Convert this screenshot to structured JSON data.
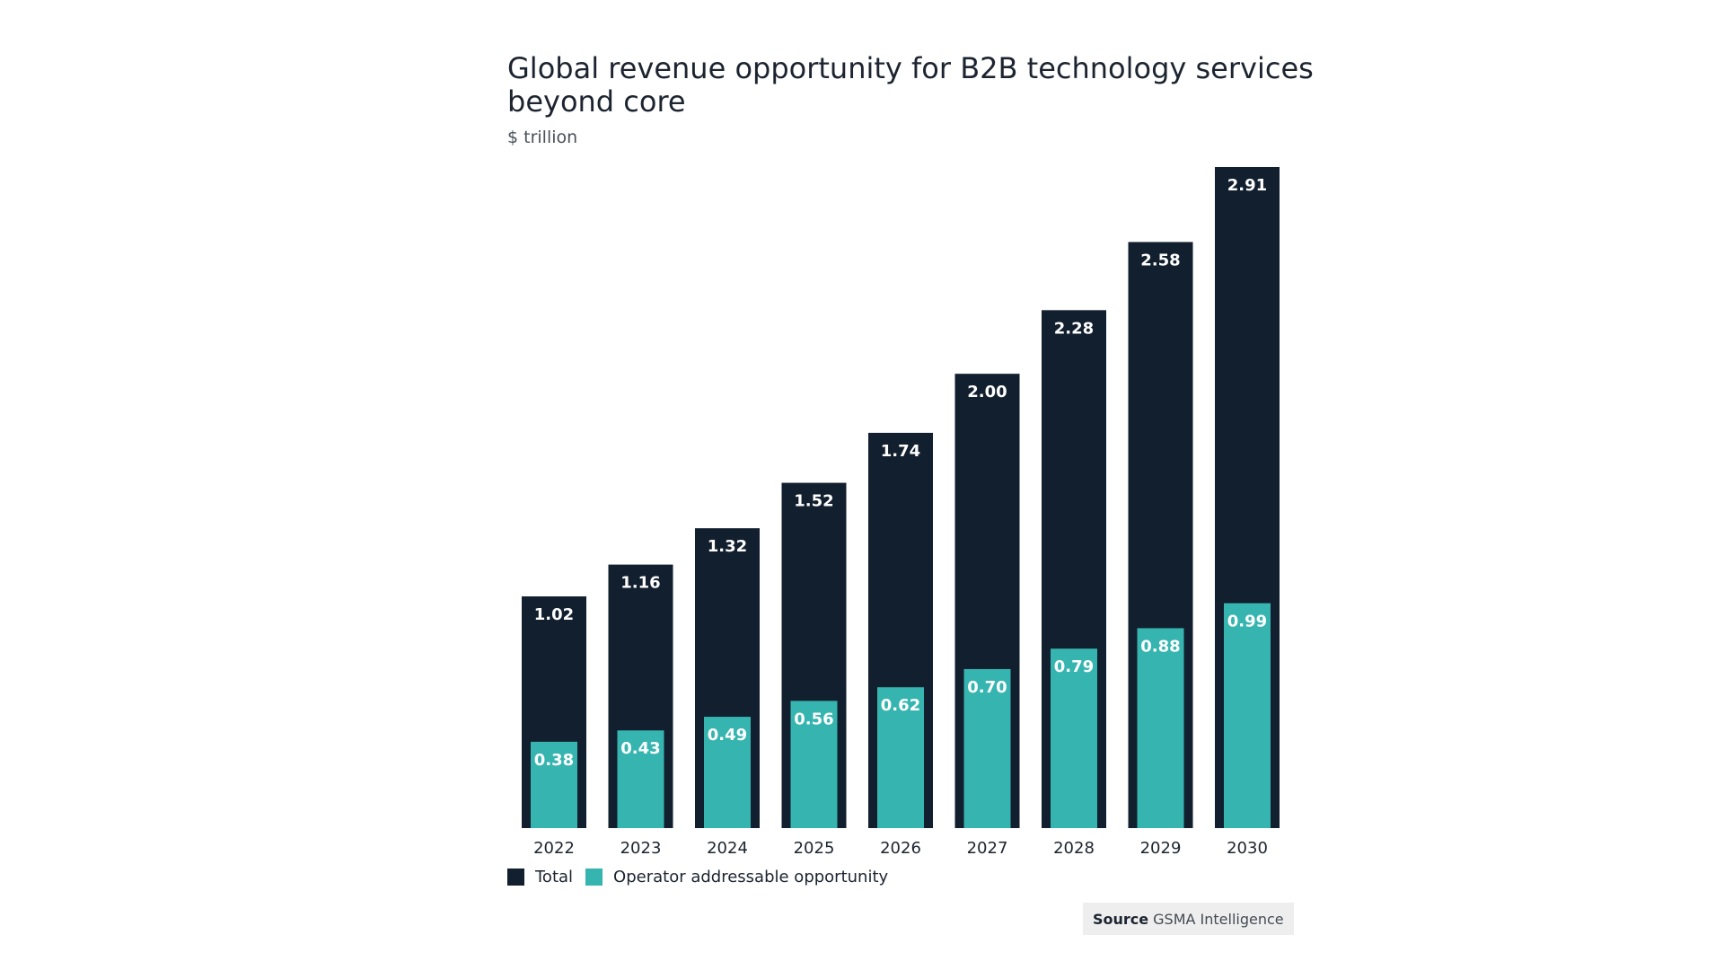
{
  "chart_data": {
    "type": "bar",
    "title": "Global revenue opportunity for B2B technology services beyond core",
    "subtitle": "$ trillion",
    "categories": [
      "2022",
      "2023",
      "2024",
      "2025",
      "2026",
      "2027",
      "2028",
      "2029",
      "2030"
    ],
    "series": [
      {
        "name": "Total",
        "values": [
          1.02,
          1.16,
          1.32,
          1.52,
          1.74,
          2.0,
          2.28,
          2.58,
          2.91
        ],
        "labels": [
          "1.02",
          "1.16",
          "1.32",
          "1.52",
          "1.74",
          "2.00",
          "2.28",
          "2.58",
          "2.91"
        ],
        "color": "#121f2e"
      },
      {
        "name": "Operator addressable opportunity",
        "values": [
          0.38,
          0.43,
          0.49,
          0.56,
          0.62,
          0.7,
          0.79,
          0.88,
          0.99
        ],
        "labels": [
          "0.38",
          "0.43",
          "0.49",
          "0.56",
          "0.62",
          "0.70",
          "0.79",
          "0.88",
          "0.99"
        ],
        "color": "#36b5b0"
      }
    ],
    "ylim": [
      0,
      2.91
    ],
    "grid": false,
    "legend": "bottom-left"
  },
  "source": {
    "label": "Source",
    "text": "GSMA Intelligence"
  }
}
